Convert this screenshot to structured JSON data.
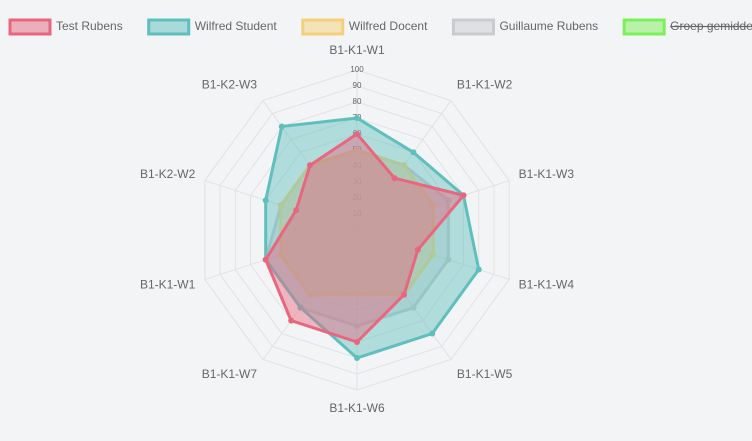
{
  "chart_data": {
    "type": "radar",
    "categories": [
      "B1-K1-W1",
      "B1-K1-W2",
      "B1-K1-W3",
      "B1-K1-W4",
      "B1-K1-W5",
      "B1-K1-W6",
      "B1-K1-W7",
      "B1-K1-W1",
      "B1-K2-W2",
      "B1-K2-W3"
    ],
    "ylim": [
      0,
      100
    ],
    "yticks": [
      10,
      20,
      30,
      40,
      50,
      60,
      70,
      80,
      90,
      100
    ],
    "grid": true,
    "legend": "top",
    "series": [
      {
        "name": "Test Rubens",
        "color": "#e8677f",
        "values": [
          60,
          40,
          70,
          40,
          50,
          70,
          70,
          60,
          40,
          50
        ]
      },
      {
        "name": "Wilfred Student",
        "color": "#5fbfbd",
        "values": [
          70,
          60,
          70,
          80,
          80,
          80,
          60,
          60,
          60,
          80
        ]
      },
      {
        "name": "Wilfred Docent",
        "color": "#f5cf7a",
        "values": [
          50,
          50,
          50,
          50,
          50,
          40,
          50,
          50,
          50,
          50
        ]
      },
      {
        "name": "Guillaume Rubens",
        "color": "#c9cbcf",
        "values": [
          50,
          50,
          60,
          60,
          60,
          60,
          60,
          60,
          50,
          50
        ]
      },
      {
        "name": "Groep gemiddelde",
        "color": "#7cf05a",
        "hidden": true
      }
    ]
  }
}
